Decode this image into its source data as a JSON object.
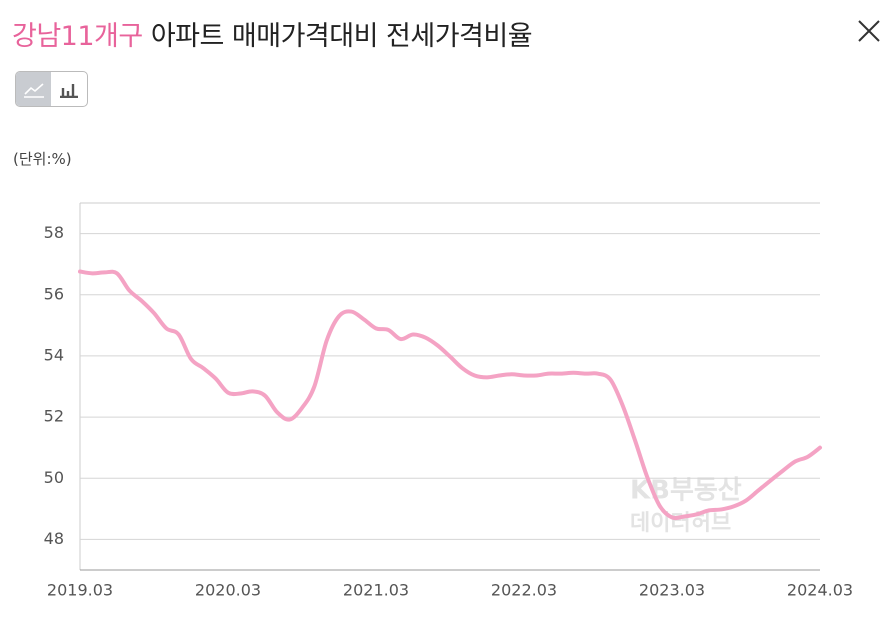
{
  "header": {
    "title_highlight": "강남11개구",
    "title": "아파트 매매가격대비 전세가격비율"
  },
  "unit_label": "(단위:%)",
  "watermark": {
    "line1": "KB부동산",
    "line2": "데이터허브"
  },
  "chart_data": {
    "type": "line",
    "color": "#f4a3c4",
    "categories": [
      "2019.03",
      null,
      null,
      null,
      null,
      null,
      null,
      null,
      null,
      null,
      null,
      null,
      "2020.03",
      null,
      null,
      null,
      null,
      null,
      null,
      null,
      null,
      null,
      null,
      null,
      "2021.03",
      null,
      null,
      null,
      null,
      null,
      null,
      null,
      null,
      null,
      null,
      null,
      "2022.03",
      null,
      null,
      null,
      null,
      null,
      null,
      null,
      null,
      null,
      null,
      null,
      "2023.03",
      null,
      null,
      null,
      null,
      null,
      null,
      null,
      null,
      null,
      null,
      null,
      "2024.03"
    ],
    "values": [
      56.76,
      56.7,
      56.73,
      56.7,
      56.14,
      55.8,
      55.4,
      54.9,
      54.7,
      53.9,
      53.6,
      53.26,
      52.8,
      52.77,
      52.84,
      52.7,
      52.15,
      51.92,
      52.3,
      53.0,
      54.5,
      55.3,
      55.45,
      55.2,
      54.9,
      54.85,
      54.55,
      54.7,
      54.6,
      54.34,
      53.98,
      53.6,
      53.36,
      53.3,
      53.36,
      53.4,
      53.36,
      53.36,
      53.42,
      53.42,
      53.45,
      53.42,
      53.42,
      53.23,
      52.38,
      51.24,
      50.03,
      49.1,
      48.72,
      48.75,
      48.82,
      48.95,
      48.98,
      49.08,
      49.27,
      49.6,
      49.93,
      50.25,
      50.55,
      50.7,
      51.0
    ],
    "ylim": [
      47,
      59
    ],
    "yticks": [
      48,
      50,
      52,
      54,
      56,
      58
    ],
    "grid": true
  }
}
